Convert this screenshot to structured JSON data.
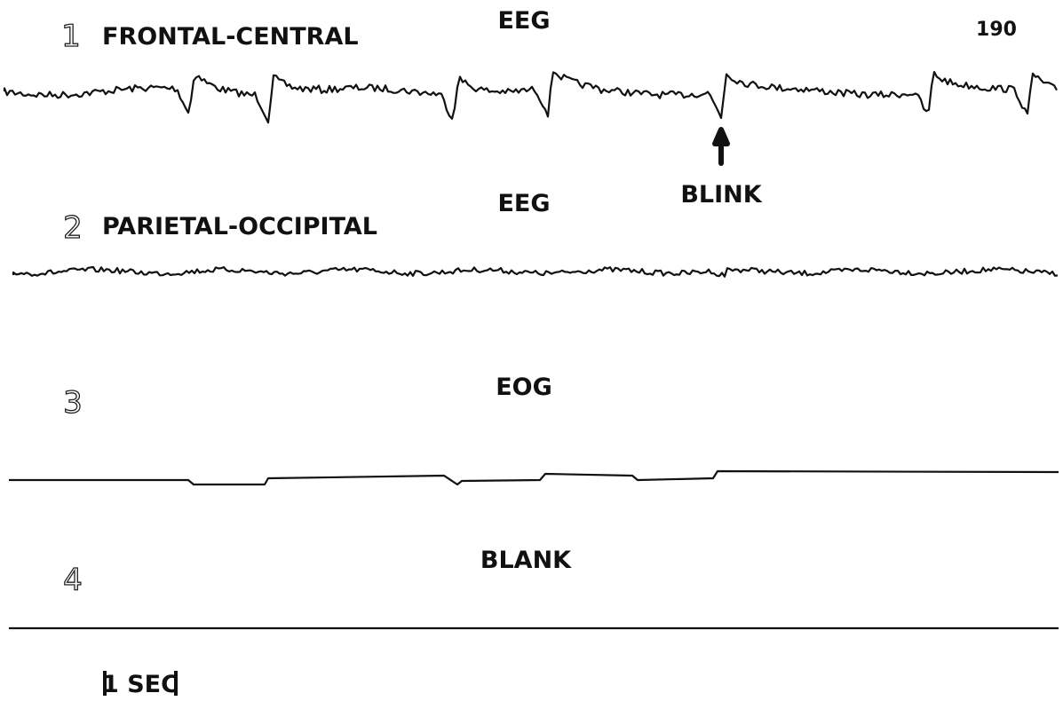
{
  "page_number": "190",
  "channels": [
    {
      "number": "1",
      "label": "FRONTAL-CENTRAL",
      "signal": "EEG"
    },
    {
      "number": "2",
      "label": "PARIETAL-OCCIPITAL",
      "signal": "EEG"
    },
    {
      "number": "3",
      "signal": "EOG"
    },
    {
      "number": "4",
      "signal": "BLANK"
    }
  ],
  "annotation": "BLINK",
  "scale_bar": "1 SEC"
}
